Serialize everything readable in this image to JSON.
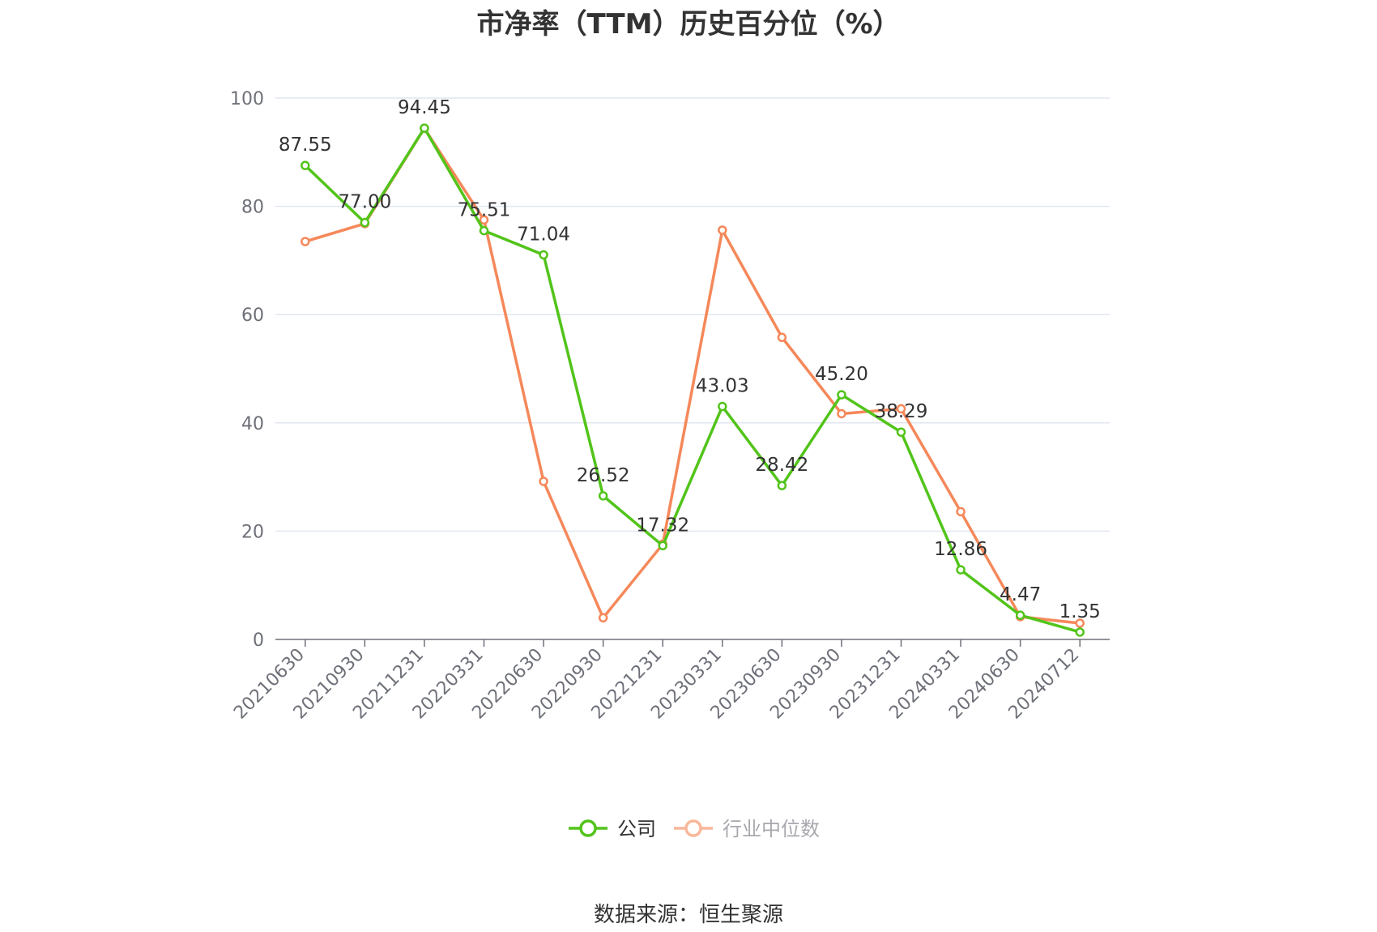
{
  "chart_data": {
    "type": "line",
    "title": "市净率（TTM）历史百分位（%）",
    "categories": [
      "20210630",
      "20210930",
      "20211231",
      "20220331",
      "20220630",
      "20220930",
      "20221231",
      "20230331",
      "20230630",
      "20230930",
      "20231231",
      "20240331",
      "20240630",
      "20240712"
    ],
    "series": [
      {
        "name": "公司",
        "color": "#52c41a",
        "values": [
          87.55,
          77.0,
          94.45,
          75.51,
          71.04,
          26.52,
          17.32,
          43.03,
          28.42,
          45.2,
          38.29,
          12.86,
          4.47,
          1.35
        ],
        "labels": [
          "87.55",
          "77.00",
          "94.45",
          "75.51",
          "71.04",
          "26.52",
          "17.32",
          "43.03",
          "28.42",
          "45.20",
          "38.29",
          "12.86",
          "4.47",
          "1.35"
        ]
      },
      {
        "name": "行业中位数",
        "color": "#f5885a",
        "values": [
          73.5,
          76.8,
          94.4,
          77.5,
          29.2,
          4.0,
          17.6,
          75.6,
          55.8,
          41.7,
          42.6,
          23.6,
          4.2,
          3.0
        ]
      }
    ],
    "yticks": [
      "0",
      "20",
      "40",
      "60",
      "80",
      "100"
    ],
    "ylim": [
      0,
      100
    ],
    "grid": true,
    "legend": "bottom-center"
  },
  "source": "数据来源：恒生聚源"
}
